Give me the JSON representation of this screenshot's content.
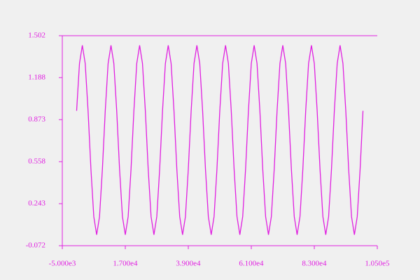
{
  "chart_data": {
    "type": "line",
    "x": [
      0,
      1000,
      2000,
      3000,
      4000,
      5000,
      6000,
      7000,
      8000,
      9000,
      10000,
      11000,
      12000,
      13000,
      14000,
      15000,
      16000,
      17000,
      18000,
      19000,
      20000,
      21000,
      22000,
      23000,
      24000,
      25000,
      26000,
      27000,
      28000,
      29000,
      30000,
      31000,
      32000,
      33000,
      34000,
      35000,
      36000,
      37000,
      38000,
      39000,
      40000,
      41000,
      42000,
      43000,
      44000,
      45000,
      46000,
      47000,
      48000,
      49000,
      50000,
      51000,
      52000,
      53000,
      54000,
      55000,
      56000,
      57000,
      58000,
      59000,
      60000,
      61000,
      62000,
      63000,
      64000,
      65000,
      66000,
      67000,
      68000,
      69000,
      70000,
      71000,
      72000,
      73000,
      74000,
      75000,
      76000,
      77000,
      78000,
      79000,
      80000,
      81000,
      82000,
      83000,
      84000,
      85000,
      86000,
      87000,
      88000,
      89000,
      90000,
      91000,
      92000,
      93000,
      94000,
      95000,
      96000,
      97000,
      98000,
      99000,
      100000
    ],
    "series": [
      {
        "color": "#e020e0",
        "values": [
          0.939,
          1.294,
          1.43,
          1.294,
          0.939,
          0.501,
          0.146,
          0.01,
          0.146,
          0.501,
          0.939,
          1.294,
          1.43,
          1.294,
          0.939,
          0.501,
          0.146,
          0.01,
          0.146,
          0.501,
          0.939,
          1.294,
          1.43,
          1.294,
          0.939,
          0.501,
          0.146,
          0.01,
          0.146,
          0.501,
          0.939,
          1.294,
          1.43,
          1.294,
          0.939,
          0.501,
          0.146,
          0.01,
          0.146,
          0.501,
          0.939,
          1.294,
          1.43,
          1.294,
          0.939,
          0.501,
          0.146,
          0.01,
          0.146,
          0.501,
          0.939,
          1.294,
          1.43,
          1.294,
          0.939,
          0.501,
          0.146,
          0.01,
          0.146,
          0.501,
          0.939,
          1.294,
          1.43,
          1.294,
          0.939,
          0.501,
          0.146,
          0.01,
          0.146,
          0.501,
          0.939,
          1.294,
          1.43,
          1.294,
          0.939,
          0.501,
          0.146,
          0.01,
          0.146,
          0.501,
          0.939,
          1.294,
          1.43,
          1.294,
          0.939,
          0.501,
          0.146,
          0.01,
          0.146,
          0.501,
          0.939,
          1.294,
          1.43,
          1.294,
          0.939,
          0.501,
          0.146,
          0.01,
          0.146,
          0.501,
          0.939
        ]
      }
    ],
    "xlim": [
      -5000,
      105000
    ],
    "xticks": [
      {
        "value": -5000,
        "label": "-5.000e3"
      },
      {
        "value": 17000,
        "label": "1.700e4"
      },
      {
        "value": 39000,
        "label": "3.900e4"
      },
      {
        "value": 61000,
        "label": "6.100e4"
      },
      {
        "value": 83000,
        "label": "8.300e4"
      },
      {
        "value": 105000,
        "label": "1.050e5"
      }
    ],
    "ylim": [
      -0.072,
      1.502
    ],
    "yticks": [
      -0.072,
      0.243,
      0.558,
      0.873,
      1.188,
      1.502
    ],
    "axis_color": "#e020e0"
  }
}
